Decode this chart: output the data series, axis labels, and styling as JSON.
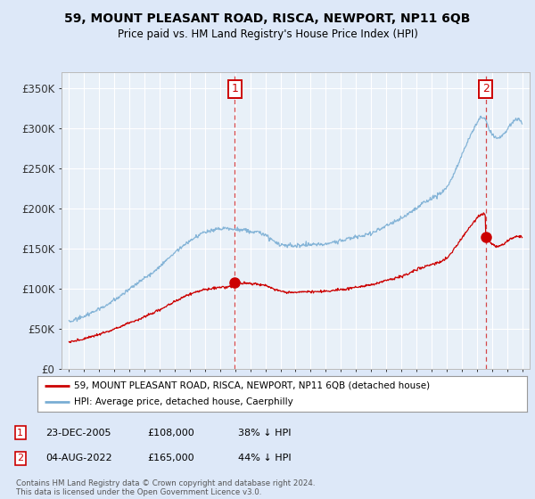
{
  "title": "59, MOUNT PLEASANT ROAD, RISCA, NEWPORT, NP11 6QB",
  "subtitle": "Price paid vs. HM Land Registry's House Price Index (HPI)",
  "ylabel_ticks": [
    "£0",
    "£50K",
    "£100K",
    "£150K",
    "£200K",
    "£250K",
    "£300K",
    "£350K"
  ],
  "ytick_values": [
    0,
    50000,
    100000,
    150000,
    200000,
    250000,
    300000,
    350000
  ],
  "ylim": [
    0,
    370000
  ],
  "xlim_start": 1994.5,
  "xlim_end": 2025.5,
  "sale1_date": 2005.98,
  "sale1_price": 108000,
  "sale2_date": 2022.59,
  "sale2_price": 165000,
  "hpi_color": "#7aaed4",
  "price_color": "#cc0000",
  "background_color": "#dde8f8",
  "plot_bg_color": "#e8f0f8",
  "grid_color": "#ffffff",
  "legend_label_red": "59, MOUNT PLEASANT ROAD, RISCA, NEWPORT, NP11 6QB (detached house)",
  "legend_label_blue": "HPI: Average price, detached house, Caerphilly",
  "annotation1": "23-DEC-2005",
  "annotation1_price": "£108,000",
  "annotation1_pct": "38% ↓ HPI",
  "annotation2": "04-AUG-2022",
  "annotation2_price": "£165,000",
  "annotation2_pct": "44% ↓ HPI",
  "footer": "Contains HM Land Registry data © Crown copyright and database right 2024.\nThis data is licensed under the Open Government Licence v3.0."
}
